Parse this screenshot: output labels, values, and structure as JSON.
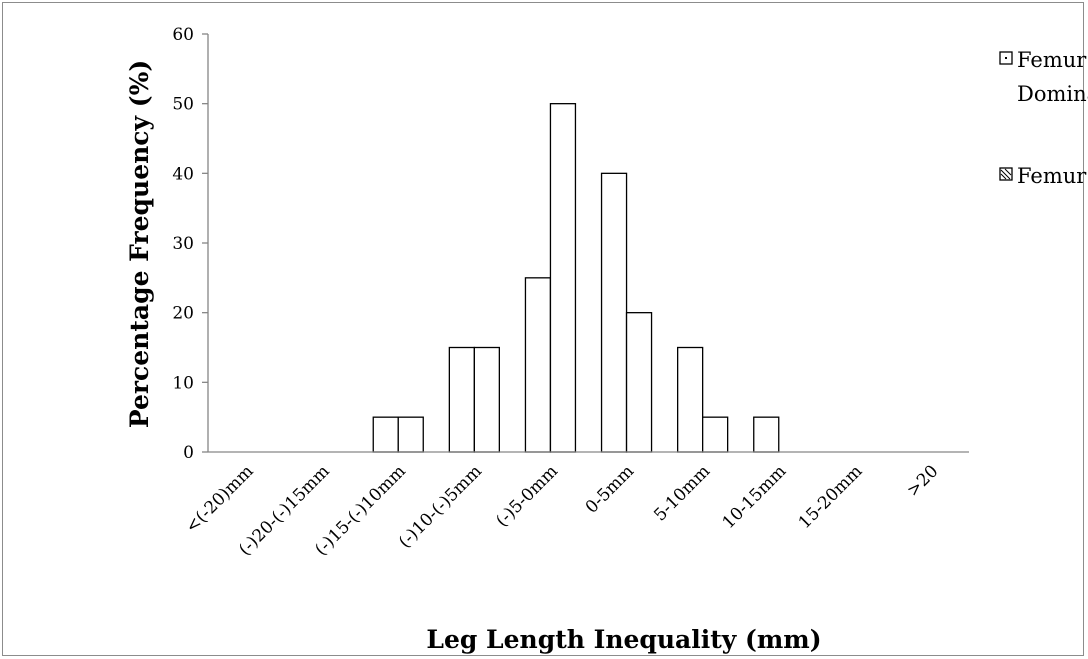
{
  "chart_data": {
    "type": "bar",
    "title": "",
    "xlabel": "Leg Length Inequality (mm)",
    "ylabel": "Percentage Frequency (%)",
    "ylim": [
      0,
      60
    ],
    "yticks": [
      0,
      10,
      20,
      30,
      40,
      50,
      60
    ],
    "categories": [
      "<(-20)mm",
      "(-)20-(-)15mm",
      "(-)15-(-)10mm",
      "(-)10-(-)5mm",
      "(-)5-0mm",
      "0-5mm",
      "5-10mm",
      "10-15mm",
      "15-20mm",
      ">20"
    ],
    "series": [
      {
        "name": "Femur Non Dominant",
        "values": [
          0,
          0,
          5,
          15,
          25,
          40,
          15,
          5,
          0,
          0
        ]
      },
      {
        "name": "Femur Dominant",
        "values": [
          0,
          0,
          5,
          15,
          50,
          20,
          5,
          0,
          0,
          0
        ]
      }
    ],
    "legend_position": "top-right",
    "grid": false,
    "colors": {
      "bar_fill": "#ffffff",
      "bar_stroke": "#000000",
      "axis": "#868686"
    }
  },
  "legend": {
    "items": [
      {
        "label_line1": "Femur Non",
        "label_line2": "Dominant"
      },
      {
        "label_line1": "Femur Dominant",
        "label_line2": ""
      }
    ]
  }
}
